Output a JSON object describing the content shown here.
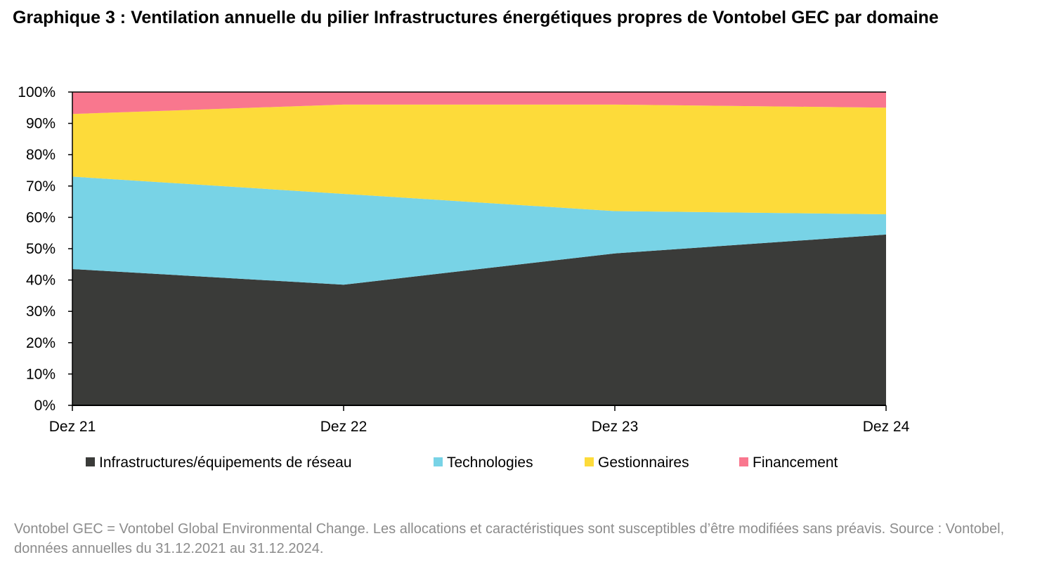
{
  "title": "Graphique 3 : Ventilation annuelle du pilier Infrastructures énergétiques propres de Vontobel GEC par domaine",
  "footnote": "Vontobel GEC = Vontobel Global Environmental Change. Les allocations et caractéristiques sont susceptibles d’être modifiées sans préavis. Source : Vontobel, données annuelles du 31.12.2021 au 31.12.2024.",
  "chart_data": {
    "type": "area",
    "stacked": true,
    "categories": [
      "Dez 21",
      "Dez 22",
      "Dez 23",
      "Dez 24"
    ],
    "y_ticks": [
      "0%",
      "10%",
      "20%",
      "30%",
      "40%",
      "50%",
      "60%",
      "70%",
      "80%",
      "90%",
      "100%"
    ],
    "ylim": [
      0,
      100
    ],
    "unit": "%",
    "grid": false,
    "legend_position": "bottom",
    "series": [
      {
        "name": "Infrastructures/équipements de réseau",
        "color": "#3a3b39",
        "values": [
          43.5,
          38.5,
          48.5,
          54.5
        ]
      },
      {
        "name": "Technologies",
        "color": "#78d3e6",
        "values": [
          29.5,
          29,
          13.5,
          6.5
        ]
      },
      {
        "name": "Gestionnaires",
        "color": "#fddb3a",
        "values": [
          20,
          28.5,
          34,
          34
        ]
      },
      {
        "name": "Financement",
        "color": "#f9778e",
        "values": [
          7,
          4,
          4,
          5
        ]
      }
    ]
  }
}
